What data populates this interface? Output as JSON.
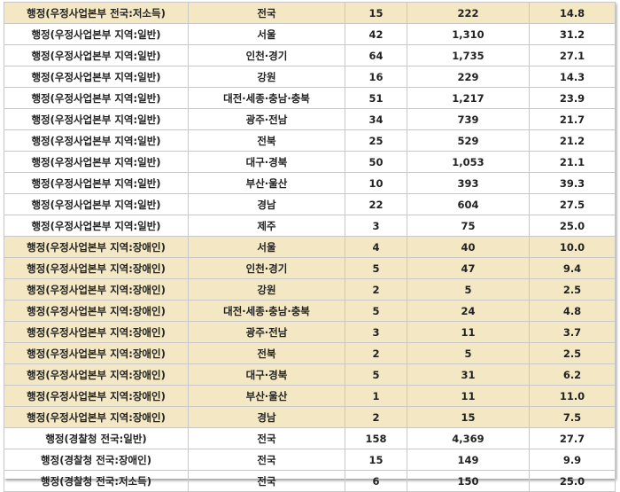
{
  "table": {
    "shade": "#f4e8c4",
    "rows": [
      {
        "cells": [
          "행정(우정사업본부 전국:저소득)",
          "전국",
          "15",
          "222",
          "14.8"
        ],
        "shaded": true
      },
      {
        "cells": [
          "행정(우정사업본부 지역:일반)",
          "서울",
          "42",
          "1,310",
          "31.2"
        ],
        "shaded": false
      },
      {
        "cells": [
          "행정(우정사업본부 지역:일반)",
          "인천·경기",
          "64",
          "1,735",
          "27.1"
        ],
        "shaded": false
      },
      {
        "cells": [
          "행정(우정사업본부 지역:일반)",
          "강원",
          "16",
          "229",
          "14.3"
        ],
        "shaded": false
      },
      {
        "cells": [
          "행정(우정사업본부 지역:일반)",
          "대전·세종·충남·충북",
          "51",
          "1,217",
          "23.9"
        ],
        "shaded": false
      },
      {
        "cells": [
          "행정(우정사업본부 지역:일반)",
          "광주·전남",
          "34",
          "739",
          "21.7"
        ],
        "shaded": false
      },
      {
        "cells": [
          "행정(우정사업본부 지역:일반)",
          "전북",
          "25",
          "529",
          "21.2"
        ],
        "shaded": false
      },
      {
        "cells": [
          "행정(우정사업본부 지역:일반)",
          "대구·경북",
          "50",
          "1,053",
          "21.1"
        ],
        "shaded": false
      },
      {
        "cells": [
          "행정(우정사업본부 지역:일반)",
          "부산·울산",
          "10",
          "393",
          "39.3"
        ],
        "shaded": false
      },
      {
        "cells": [
          "행정(우정사업본부 지역:일반)",
          "경남",
          "22",
          "604",
          "27.5"
        ],
        "shaded": false
      },
      {
        "cells": [
          "행정(우정사업본부 지역:일반)",
          "제주",
          "3",
          "75",
          "25.0"
        ],
        "shaded": false
      },
      {
        "cells": [
          "행정(우정사업본부 지역:장애인)",
          "서울",
          "4",
          "40",
          "10.0"
        ],
        "shaded": true
      },
      {
        "cells": [
          "행정(우정사업본부 지역:장애인)",
          "인천·경기",
          "5",
          "47",
          "9.4"
        ],
        "shaded": true
      },
      {
        "cells": [
          "행정(우정사업본부 지역:장애인)",
          "강원",
          "2",
          "5",
          "2.5"
        ],
        "shaded": true
      },
      {
        "cells": [
          "행정(우정사업본부 지역:장애인)",
          "대전·세종·충남·충북",
          "5",
          "24",
          "4.8"
        ],
        "shaded": true
      },
      {
        "cells": [
          "행정(우정사업본부 지역:장애인)",
          "광주·전남",
          "3",
          "11",
          "3.7"
        ],
        "shaded": true
      },
      {
        "cells": [
          "행정(우정사업본부 지역:장애인)",
          "전북",
          "2",
          "5",
          "2.5"
        ],
        "shaded": true
      },
      {
        "cells": [
          "행정(우정사업본부 지역:장애인)",
          "대구·경북",
          "5",
          "31",
          "6.2"
        ],
        "shaded": true
      },
      {
        "cells": [
          "행정(우정사업본부 지역:장애인)",
          "부산·울산",
          "1",
          "11",
          "11.0"
        ],
        "shaded": true
      },
      {
        "cells": [
          "행정(우정사업본부 지역:장애인)",
          "경남",
          "2",
          "15",
          "7.5"
        ],
        "shaded": true
      },
      {
        "cells": [
          "행정(경찰청 전국:일반)",
          "전국",
          "158",
          "4,369",
          "27.7"
        ],
        "shaded": false
      },
      {
        "cells": [
          "행정(경찰청 전국:장애인)",
          "전국",
          "15",
          "149",
          "9.9"
        ],
        "shaded": false
      },
      {
        "cells": [
          "행정(경찰청 전국:저소득)",
          "전국",
          "6",
          "150",
          "25.0"
        ],
        "shaded": false
      }
    ]
  }
}
